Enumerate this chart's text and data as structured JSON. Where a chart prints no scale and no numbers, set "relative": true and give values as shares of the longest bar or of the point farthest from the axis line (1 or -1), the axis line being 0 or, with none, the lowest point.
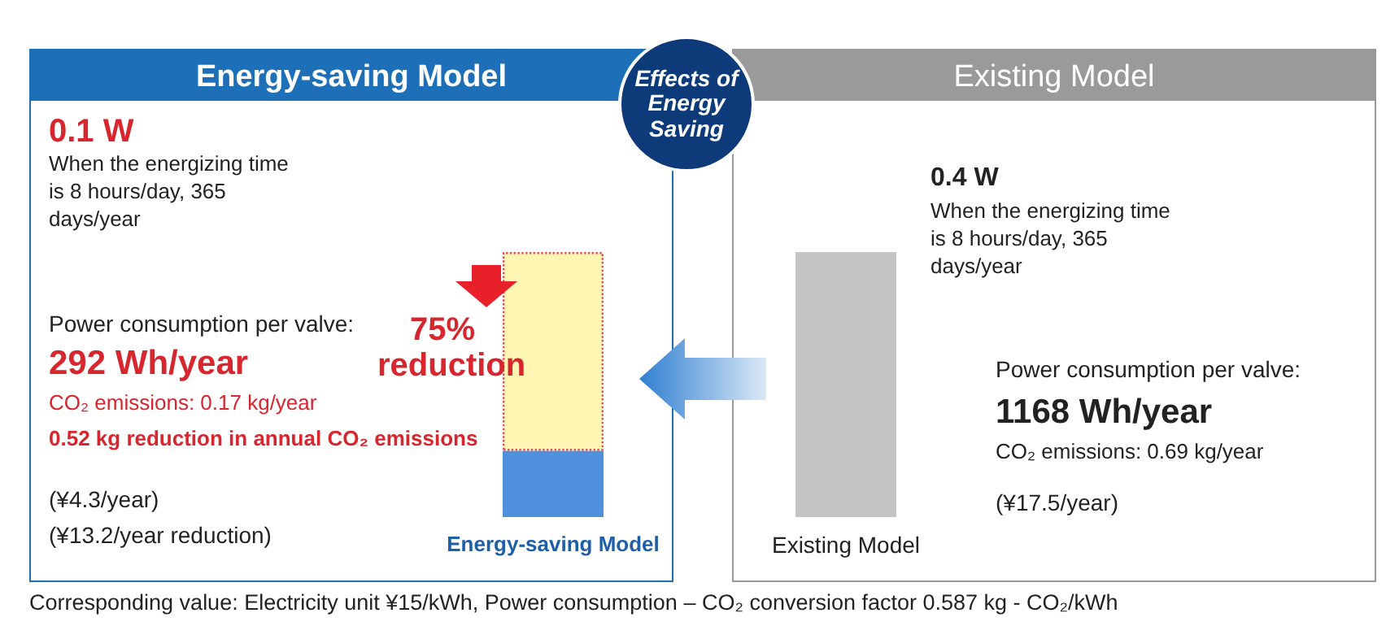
{
  "chart_data": {
    "type": "bar",
    "title": "Effects of Energy Saving",
    "categories": [
      "Energy-saving Model",
      "Existing Model"
    ],
    "stacked": true,
    "relative": true,
    "grid": false,
    "tick_labels": "x",
    "series": [
      {
        "values": [
          0.25,
          1
        ],
        "colors": [
          "#4f8fdc",
          "#c4c4c4"
        ]
      },
      {
        "values": [
          0.75,
          null
        ],
        "color": "#fff6b3"
      }
    ],
    "annotations": [
      "Energy-saving Model",
      "Existing Model",
      "0.1 W",
      "When the energizing time is 8 hours/day, 365 days/year",
      "Power consumption per valve:",
      "292 Wh/year",
      "CO₂ emissions: 0.17 kg/year",
      "0.52 kg reduction in annual CO₂ emissions",
      "(¥4.3/year)",
      "(¥13.2/year reduction)",
      "75% reduction",
      "0.4 W",
      "When the energizing time is 8 hours/day, 365 days/year",
      "Power consumption per valve:",
      "1168 Wh/year",
      "CO₂ emissions: 0.69 kg/year",
      "(¥17.5/year)",
      "Corresponding value: Electricity unit ¥15/kWh, Power consumption – CO₂ conversion factor 0.587 kg - CO₂/kWh"
    ]
  }
}
